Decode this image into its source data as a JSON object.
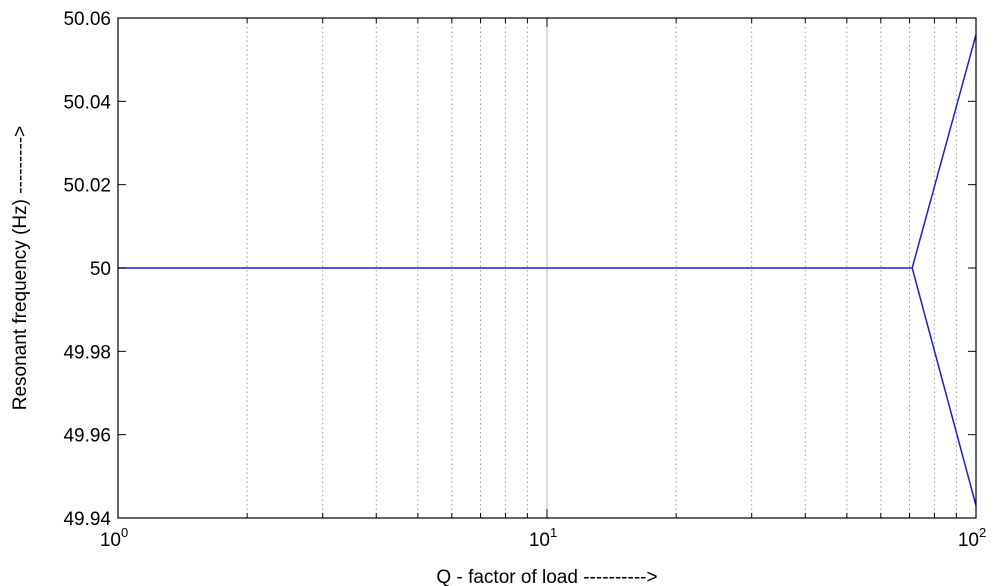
{
  "chart_data": {
    "type": "line",
    "title": "",
    "xlabel": "Q - factor of load ---------->",
    "ylabel": "Resonant frequency (Hz) --------->",
    "x_scale": "log",
    "xlim": [
      1,
      100
    ],
    "ylim": [
      49.94,
      50.06
    ],
    "x_ticks": [
      {
        "value": 1,
        "base": "10",
        "exp": "0"
      },
      {
        "value": 10,
        "base": "10",
        "exp": "1"
      },
      {
        "value": 100,
        "base": "10",
        "exp": "2"
      }
    ],
    "y_ticks": [
      {
        "value": 49.94,
        "label": "49.94"
      },
      {
        "value": 49.96,
        "label": "49.96"
      },
      {
        "value": 49.98,
        "label": "49.98"
      },
      {
        "value": 50.0,
        "label": "50"
      },
      {
        "value": 50.02,
        "label": "50.02"
      },
      {
        "value": 50.04,
        "label": "50.04"
      },
      {
        "value": 50.06,
        "label": "50.06"
      }
    ],
    "grid": true,
    "series": [
      {
        "color": "#1f1fd0",
        "segments": [
          {
            "x": [
              1,
              71,
              100
            ],
            "y": [
              50.0,
              50.0,
              50.056
            ]
          },
          {
            "x": [
              71,
              100
            ],
            "y": [
              50.0,
              49.943
            ]
          }
        ]
      }
    ]
  }
}
